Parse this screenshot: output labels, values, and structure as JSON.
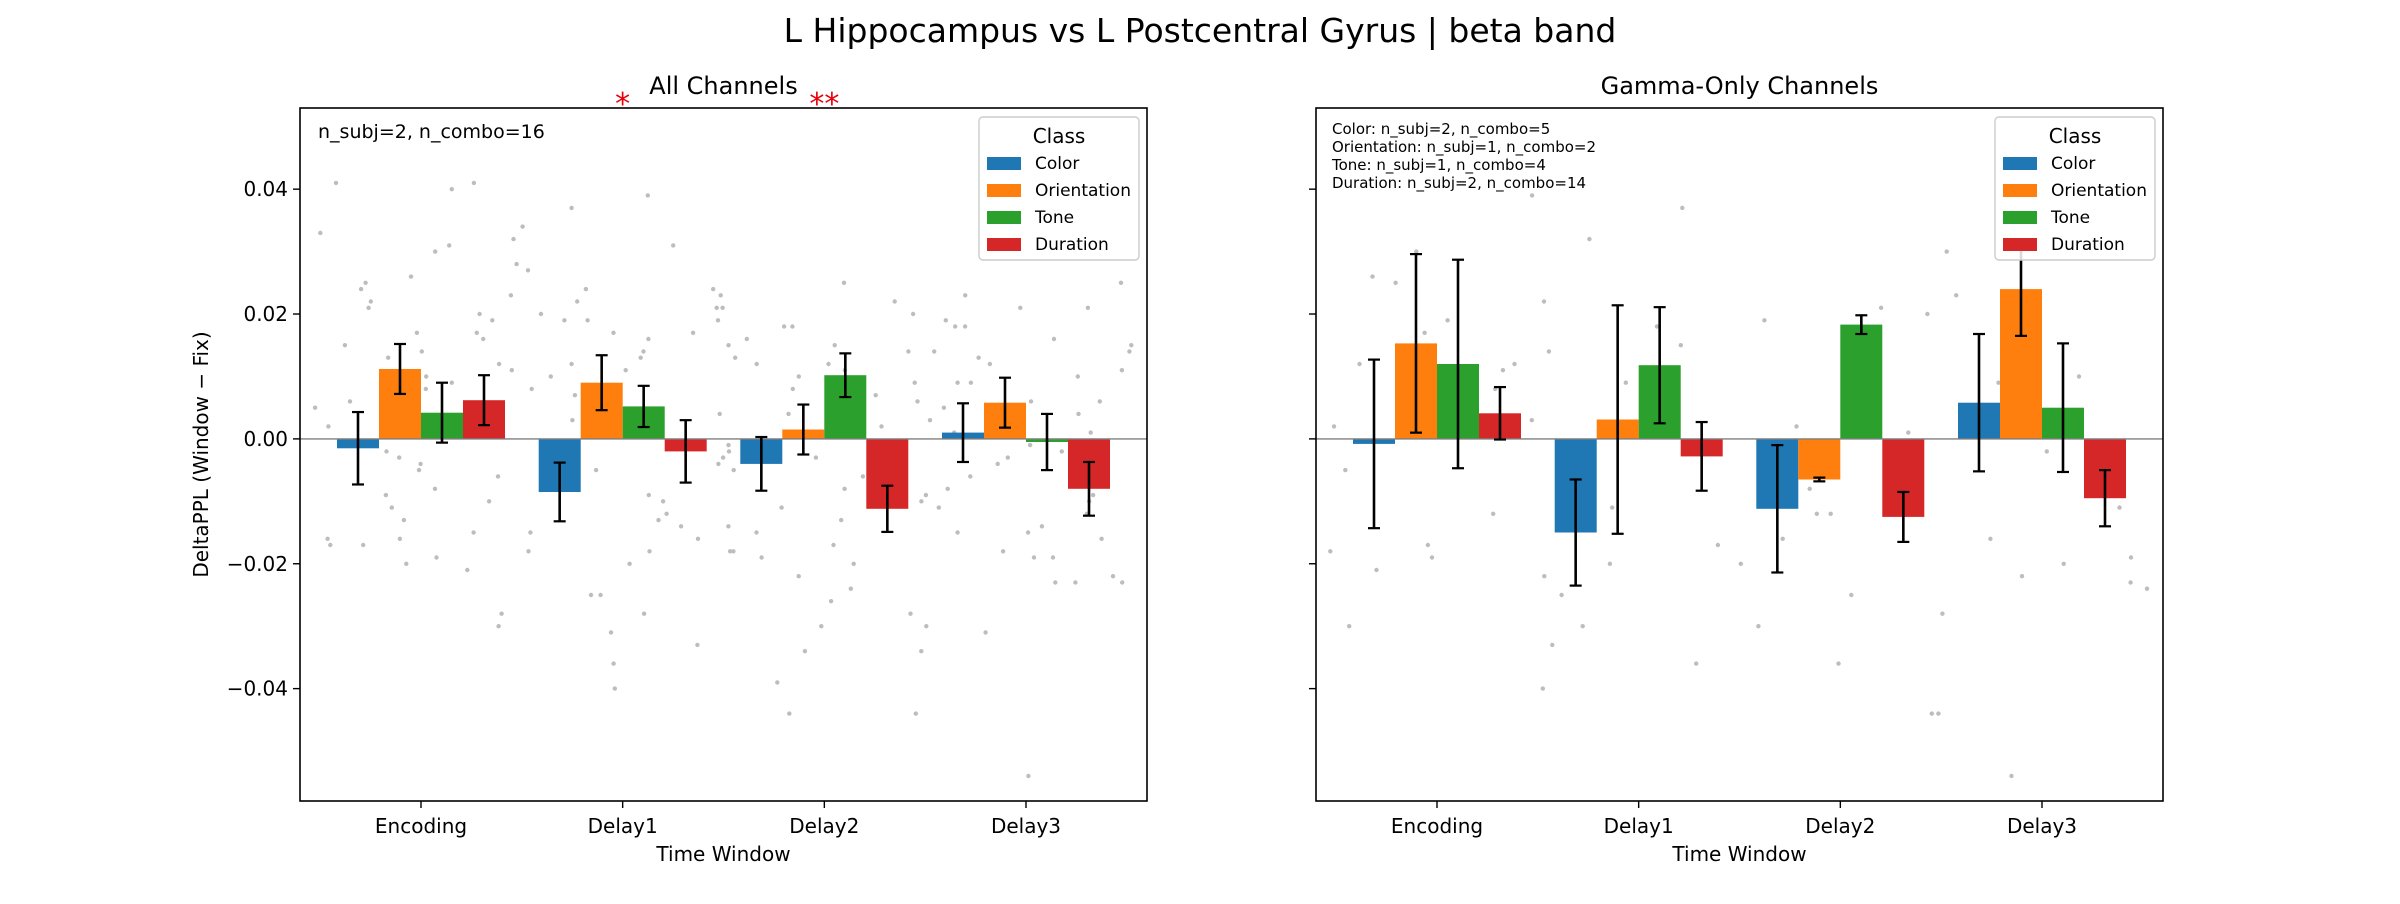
{
  "title": "L Hippocampus vs L Postcentral Gyrus  |  beta band",
  "colors": {
    "Color": "#1f77b4",
    "Orientation": "#ff7f0e",
    "Tone": "#2ca02c",
    "Duration": "#d62728",
    "sig": "#e8000b",
    "scatter": "#bdbdbd"
  },
  "chart_data": [
    {
      "type": "bar",
      "title": "All Channels",
      "xlabel": "Time Window",
      "ylabel": "DeltaPPL (Window − Fix)",
      "categories": [
        "Encoding",
        "Delay1",
        "Delay2",
        "Delay3"
      ],
      "ylim": [
        -0.058,
        0.053
      ],
      "yticks": [
        0.04,
        0.02,
        0.0,
        -0.02,
        -0.04
      ],
      "ytick_labels": [
        "0.04",
        "0.02",
        "0.00",
        "−0.02",
        "−0.04"
      ],
      "show_ytick_labels": true,
      "legend_title": "Class",
      "legend_position": "upper right",
      "annotation": "n_subj=2, n_combo=16",
      "significance": [
        {
          "category": "Delay1",
          "label": "*"
        },
        {
          "category": "Delay2",
          "label": "**"
        }
      ],
      "series": [
        {
          "name": "Color",
          "values": [
            -0.0015,
            -0.0085,
            -0.004,
            0.001
          ],
          "errors": [
            0.0058,
            0.0047,
            0.0043,
            0.0047
          ]
        },
        {
          "name": "Orientation",
          "values": [
            0.0112,
            0.009,
            0.0015,
            0.0058
          ],
          "errors": [
            0.004,
            0.0044,
            0.004,
            0.004
          ]
        },
        {
          "name": "Tone",
          "values": [
            0.0042,
            0.0052,
            0.0102,
            -0.0005
          ],
          "errors": [
            0.0048,
            0.0033,
            0.0035,
            0.0045
          ]
        },
        {
          "name": "Duration",
          "values": [
            0.0062,
            -0.002,
            -0.0112,
            -0.008
          ],
          "errors": [
            0.004,
            0.005,
            0.0037,
            0.0043
          ]
        }
      ],
      "scatter": [
        {
          "category": "Encoding",
          "values": [
            0.041,
            0.03,
            0.026,
            0.022,
            0.019,
            0.017,
            0.014,
            0.01,
            0.008,
            0.005,
            0.003,
            0.001,
            -0.003,
            -0.006,
            -0.009,
            -0.013,
            -0.017,
            -0.018,
            -0.021,
            -0.028,
            -0.03,
            0.033,
            0.031,
            0.028,
            0.024,
            0.02,
            0.015,
            0.011,
            0.006,
            -0.002,
            -0.008,
            -0.011,
            -0.016,
            -0.019,
            0.041,
            0.04,
            0.034,
            0.025,
            0.021,
            0.016,
            0.012,
            0.009,
            0.002,
            -0.004,
            -0.01,
            -0.015,
            -0.017,
            -0.02,
            0.027,
            0.023,
            0.017,
            0.013,
            -0.005,
            -0.016
          ]
        },
        {
          "category": "Delay1",
          "values": [
            0.024,
            0.022,
            0.019,
            0.016,
            0.014,
            0.011,
            0.007,
            0.004,
            -0.003,
            -0.008,
            -0.012,
            -0.015,
            -0.018,
            -0.02,
            -0.025,
            -0.028,
            -0.031,
            -0.04,
            0.032,
            0.031,
            0.024,
            0.019,
            0.017,
            0.015,
            0.012,
            0.008,
            0.002,
            -0.005,
            -0.01,
            -0.014,
            -0.018,
            0.039,
            0.02,
            0.017,
            0.013,
            0.01,
            0.003,
            -0.004,
            -0.009,
            -0.013,
            -0.016,
            -0.025,
            -0.033,
            -0.036,
            0.037
          ]
        },
        {
          "category": "Delay2",
          "values": [
            0.025,
            0.021,
            0.018,
            0.014,
            0.012,
            0.009,
            0.005,
            0.002,
            -0.002,
            -0.006,
            -0.01,
            -0.013,
            -0.017,
            -0.02,
            -0.024,
            -0.03,
            -0.044,
            0.023,
            0.022,
            0.02,
            0.018,
            0.016,
            0.014,
            0.011,
            0.007,
            0.003,
            -0.004,
            -0.008,
            -0.011,
            -0.015,
            -0.018,
            -0.022,
            -0.028,
            -0.034,
            -0.039,
            0.021,
            0.019,
            0.015,
            0.012,
            0.008,
            0.004,
            -0.001,
            -0.005,
            -0.009,
            -0.014,
            -0.019,
            -0.026,
            -0.03,
            -0.044,
            0.013,
            0.01,
            0.006,
            -0.003
          ]
        },
        {
          "category": "Delay3",
          "values": [
            0.023,
            0.018,
            0.015,
            0.012,
            0.009,
            0.006,
            0.003,
            -0.001,
            -0.004,
            -0.008,
            -0.012,
            -0.015,
            -0.019,
            -0.022,
            0.025,
            0.019,
            0.014,
            0.01,
            0.005,
            0.001,
            -0.003,
            -0.007,
            -0.011,
            -0.016,
            -0.023,
            -0.031,
            0.021,
            0.018,
            0.013,
            0.009,
            0.004,
            -0.002,
            -0.006,
            -0.01,
            -0.015,
            -0.019,
            -0.023,
            -0.034,
            0.021,
            0.016,
            0.011,
            0.006,
            0.001,
            -0.004,
            -0.009,
            -0.014,
            -0.018,
            -0.023,
            -0.054
          ]
        }
      ]
    },
    {
      "type": "bar",
      "title": "Gamma-Only Channels",
      "xlabel": "Time Window",
      "ylabel": "",
      "categories": [
        "Encoding",
        "Delay1",
        "Delay2",
        "Delay3"
      ],
      "ylim": [
        -0.058,
        0.053
      ],
      "yticks": [
        0.04,
        0.02,
        0.0,
        -0.02,
        -0.04
      ],
      "ytick_labels": [
        "",
        "",
        "",
        "",
        ""
      ],
      "show_ytick_labels": false,
      "legend_title": "Class",
      "legend_position": "upper right",
      "annotation_lines": [
        "Color: n_subj=2, n_combo=5",
        "Orientation: n_subj=1, n_combo=2",
        "Tone: n_subj=1, n_combo=4",
        "Duration: n_subj=2, n_combo=14"
      ],
      "significance": [],
      "series": [
        {
          "name": "Color",
          "values": [
            -0.0008,
            -0.015,
            -0.0112,
            0.0058
          ],
          "errors": [
            0.0135,
            0.0085,
            0.0102,
            0.011
          ]
        },
        {
          "name": "Orientation",
          "values": [
            0.0153,
            0.0031,
            -0.0065,
            0.024
          ],
          "errors": [
            0.0143,
            0.0183,
            0.0003,
            0.0075
          ]
        },
        {
          "name": "Tone",
          "values": [
            0.012,
            0.0118,
            0.0183,
            0.005
          ],
          "errors": [
            0.0167,
            0.0093,
            0.0015,
            0.0103
          ]
        },
        {
          "name": "Duration",
          "values": [
            0.0041,
            -0.0028,
            -0.0125,
            -0.0095
          ],
          "errors": [
            0.0042,
            0.0055,
            0.004,
            0.0045
          ]
        }
      ],
      "scatter": [
        {
          "category": "Encoding",
          "values": [
            -0.022,
            -0.03,
            0.017,
            0.011,
            0.03,
            0.025,
            0.012,
            0.005,
            -0.017,
            -0.018,
            0.026,
            0.019,
            0.012,
            0.008,
            0.002,
            -0.005,
            -0.012,
            -0.019,
            -0.021
          ]
        },
        {
          "category": "Delay1",
          "values": [
            0.014,
            -0.04,
            0.039,
            0.018,
            -0.025,
            -0.036,
            0.037,
            0.032,
            0.022,
            0.015,
            0.009,
            0.003,
            -0.004,
            -0.011,
            -0.017,
            -0.02,
            -0.03,
            -0.033
          ]
        },
        {
          "category": "Delay2",
          "values": [
            -0.044,
            -0.012,
            0.021,
            0.02,
            0.019,
            0.002,
            0.001,
            -0.004,
            -0.008,
            -0.012,
            -0.016,
            -0.02,
            -0.025,
            -0.028,
            -0.03,
            -0.036,
            -0.044
          ]
        },
        {
          "category": "Delay3",
          "values": [
            -0.022,
            0.03,
            0.023,
            -0.023,
            0.01,
            0.017,
            0.009,
            0.004,
            -0.002,
            -0.007,
            -0.011,
            -0.016,
            -0.02,
            -0.024,
            -0.054,
            0.014,
            -0.019
          ]
        }
      ]
    }
  ]
}
